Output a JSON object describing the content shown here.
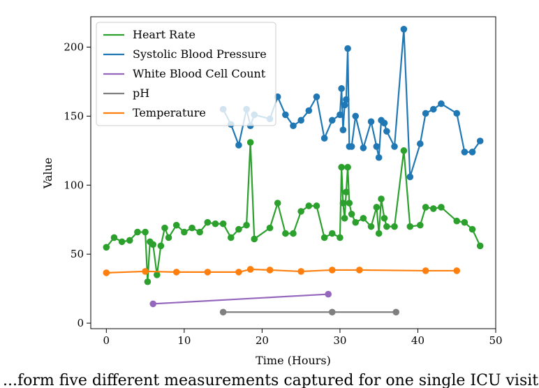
{
  "caption": "...form five different measurements captured for one single ICU visiting...",
  "chart_data": {
    "type": "line",
    "xlabel": "Time (Hours)",
    "ylabel": "Value",
    "xlim": [
      -2,
      50
    ],
    "ylim": [
      -4,
      222
    ],
    "x_ticks": [
      0,
      10,
      20,
      30,
      40,
      50
    ],
    "y_ticks": [
      0,
      50,
      100,
      150,
      200
    ],
    "grid": false,
    "legend_position": "top-left",
    "series": [
      {
        "name": "Heart Rate",
        "color": "#2ca02c",
        "x": [
          0,
          1,
          2,
          3,
          4,
          5,
          5.3,
          5.6,
          6,
          6.5,
          7,
          7.5,
          8,
          9,
          10,
          11,
          12,
          13,
          14,
          15,
          16,
          17,
          18,
          18.5,
          19,
          21,
          22,
          23,
          24,
          25,
          26,
          27,
          28,
          29,
          30,
          30.2,
          30.4,
          30.6,
          30.8,
          31,
          31.2,
          31.5,
          32,
          33,
          34,
          34.7,
          35,
          35.3,
          35.7,
          36,
          37,
          38.2,
          39,
          40.3,
          41,
          42,
          43,
          45,
          46,
          47,
          48
        ],
        "y": [
          55,
          62,
          59,
          60,
          66,
          66,
          30,
          59,
          57,
          35,
          56,
          69,
          62,
          71,
          66,
          69,
          66,
          73,
          72,
          72,
          62,
          68,
          71,
          131,
          61,
          69,
          87,
          65,
          65,
          81,
          85,
          85,
          62,
          65,
          62,
          113,
          87,
          76,
          95,
          113,
          87,
          79,
          73,
          76,
          70,
          84,
          65,
          90,
          76,
          70,
          70,
          125,
          70,
          71,
          84,
          83,
          84,
          74,
          73,
          68,
          56
        ]
      },
      {
        "name": "Systolic Blood Pressure",
        "color": "#1f77b4",
        "x": [
          15,
          16,
          17,
          18,
          18.5,
          19,
          21,
          22,
          23,
          24,
          25,
          26,
          27,
          28,
          29,
          30,
          30.2,
          30.4,
          30.6,
          30.8,
          31,
          31.2,
          31.5,
          32,
          33,
          34,
          34.7,
          35,
          35.3,
          35.7,
          36,
          37,
          38.2,
          39,
          40.3,
          41,
          42,
          43,
          45,
          46,
          47,
          48
        ],
        "y": [
          155,
          144,
          129,
          155,
          143,
          151,
          148,
          164,
          151,
          143,
          147,
          154,
          164,
          134,
          147,
          151,
          170,
          140,
          158,
          162,
          199,
          128,
          128,
          150,
          127,
          146,
          128,
          120,
          147,
          145,
          139,
          128,
          213,
          106,
          130,
          152,
          155,
          159,
          152,
          124,
          124,
          132
        ]
      },
      {
        "name": "White Blood Cell Count",
        "color": "#9467bd",
        "x": [
          6,
          28.5
        ],
        "y": [
          14,
          21
        ]
      },
      {
        "name": "pH",
        "color": "#7f7f7f",
        "x": [
          15,
          29,
          37.2
        ],
        "y": [
          8,
          8,
          8
        ]
      },
      {
        "name": "Temperature",
        "color": "#ff7f0e",
        "x": [
          0,
          5,
          9,
          13,
          17,
          18.5,
          21,
          25,
          29,
          32.5,
          41,
          45
        ],
        "y": [
          36.5,
          37.5,
          37,
          37,
          37,
          39,
          38.5,
          37.5,
          38.5,
          38.5,
          38,
          38
        ]
      }
    ]
  }
}
